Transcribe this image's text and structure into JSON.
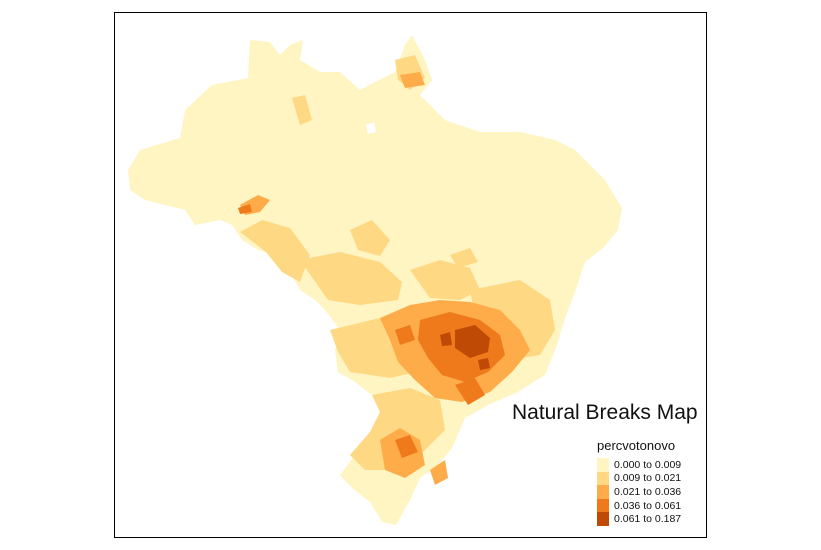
{
  "map": {
    "title": "Natural Breaks Map",
    "legend": {
      "title": "percvotonovo",
      "classes": [
        {
          "label": "0.000 to 0.009",
          "color": "#fff5c2"
        },
        {
          "label": "0.009 to 0.021",
          "color": "#fed882"
        },
        {
          "label": "0.021 to 0.036",
          "color": "#feac4a"
        },
        {
          "label": "0.036 to 0.061",
          "color": "#ee7a1c"
        },
        {
          "label": "0.061 to 0.187",
          "color": "#bf4a05"
        }
      ]
    },
    "background_color": "#ffffff"
  }
}
